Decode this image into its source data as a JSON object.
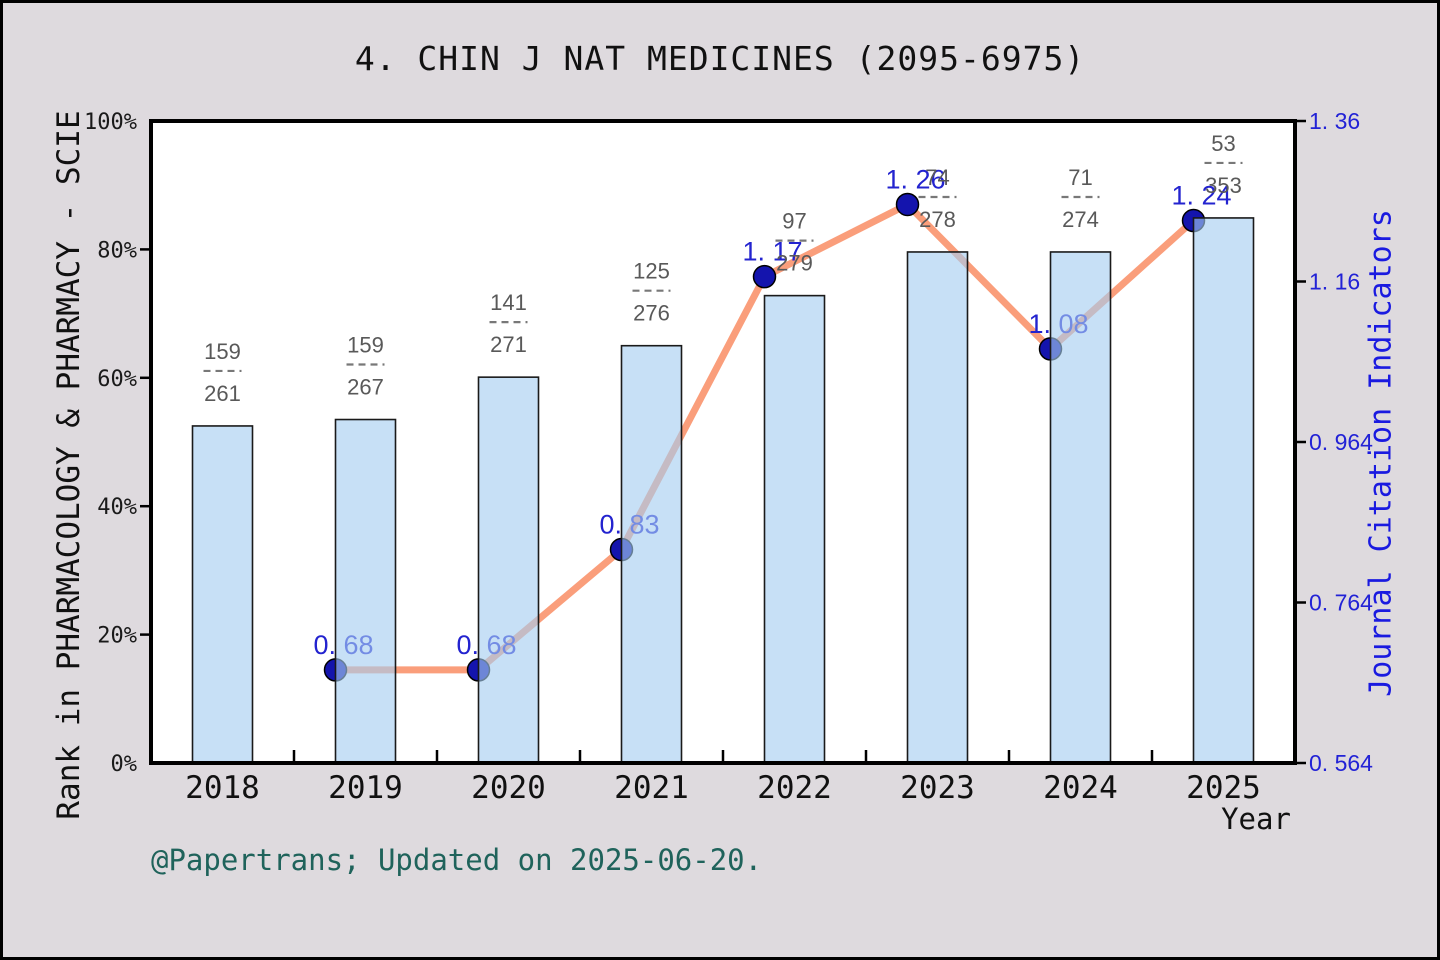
{
  "title": "4. CHIN J NAT MEDICINES (2095-6975)",
  "footer": "@Papertrans; Updated on 2025-06-20.",
  "colors": {
    "page_background": "#dedade",
    "plot_background": "#ffffff",
    "frame": "#000000",
    "bar_fill": "#a4cdf1",
    "bar_fill_opacity": 0.62,
    "bar_stroke": "#1a1a1a",
    "line": "#fa9e7b",
    "marker_fill": "#1414ad",
    "marker_stroke": "#000000",
    "value_label_blue": "#2323cf",
    "right_axis_blue": "#2222d6",
    "fraction_gray": "#595959",
    "fraction_dash_gray": "#787878",
    "footer_teal": "#1f635b"
  },
  "chart_data": {
    "type": "bar+line",
    "title": "4. CHIN J NAT MEDICINES (2095-6975)",
    "x_label": "Year",
    "categories": [
      "2018",
      "2019",
      "2020",
      "2021",
      "2022",
      "2023",
      "2024",
      "2025"
    ],
    "left_axis": {
      "title": "Rank in PHARMACOLOGY & PHARMACY - SCIE",
      "unit": "%",
      "range_pct": [
        0,
        100
      ],
      "ticks": [
        {
          "label": "0%",
          "pct": 0
        },
        {
          "label": "20%",
          "pct": 20
        },
        {
          "label": "40%",
          "pct": 40
        },
        {
          "label": "60%",
          "pct": 60
        },
        {
          "label": "80%",
          "pct": 80
        },
        {
          "label": "100%",
          "pct": 100
        }
      ]
    },
    "right_axis": {
      "title": "Journal Citation Indicators",
      "range": [
        0.564,
        1.364
      ],
      "ticks": [
        {
          "label": "0. 564",
          "value": 0.564
        },
        {
          "label": "0. 764",
          "value": 0.764
        },
        {
          "label": "0. 964",
          "value": 0.964
        },
        {
          "label": "1. 16",
          "value": 1.164
        },
        {
          "label": "1. 36",
          "value": 1.364
        }
      ]
    },
    "bar_series": {
      "name": "Rank in PHARMACOLOGY & PHARMACY - SCIE",
      "axis": "left",
      "heights_pct": [
        52.5,
        53.5,
        60.1,
        65.0,
        72.8,
        79.6,
        79.6,
        84.9
      ],
      "fraction_labels": [
        {
          "num": "159",
          "den": "261"
        },
        {
          "num": "159",
          "den": "267"
        },
        {
          "num": "141",
          "den": "271"
        },
        {
          "num": "125",
          "den": "276"
        },
        {
          "num": "97",
          "den": "279"
        },
        {
          "num": "74",
          "den": "278"
        },
        {
          "num": "71",
          "den": "274"
        },
        {
          "num": "53",
          "den": "353"
        }
      ]
    },
    "line_series": {
      "name": "Journal Citation Indicators",
      "axis": "right",
      "points": [
        {
          "year": "2019",
          "value": 0.68,
          "label": "0. 68"
        },
        {
          "year": "2020",
          "value": 0.68,
          "label": "0. 68"
        },
        {
          "year": "2021",
          "value": 0.83,
          "label": "0. 83"
        },
        {
          "year": "2022",
          "value": 1.17,
          "label": "1. 17"
        },
        {
          "year": "2023",
          "value": 1.26,
          "label": "1. 26"
        },
        {
          "year": "2024",
          "value": 1.08,
          "label": "1. 08"
        },
        {
          "year": "2025",
          "value": 1.24,
          "label": "1. 24"
        }
      ]
    },
    "layout_hints": {
      "grid": false,
      "legend": "none",
      "line_markers_at": "bar-left-edge",
      "bars_semitransparent_over_line": true
    }
  }
}
